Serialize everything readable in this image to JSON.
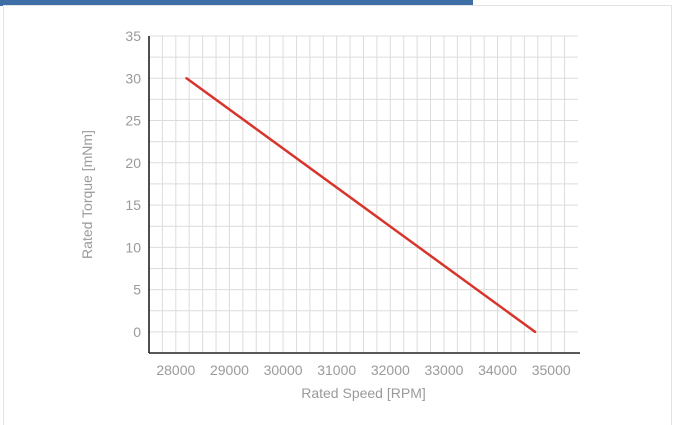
{
  "chart_data": {
    "type": "line",
    "xlabel": "Rated Speed [RPM]",
    "ylabel": "Rated Torque [mNm]",
    "xlim": [
      27500,
      35500
    ],
    "ylim": [
      -2.5,
      35
    ],
    "x_ticks": [
      28000,
      29000,
      30000,
      31000,
      32000,
      33000,
      34000,
      35000
    ],
    "y_ticks": [
      0,
      5,
      10,
      15,
      20,
      25,
      30,
      35
    ],
    "grid": true,
    "series": [
      {
        "color": "#d7352b",
        "x": [
          28200,
          34700
        ],
        "y": [
          30,
          0
        ]
      }
    ]
  }
}
